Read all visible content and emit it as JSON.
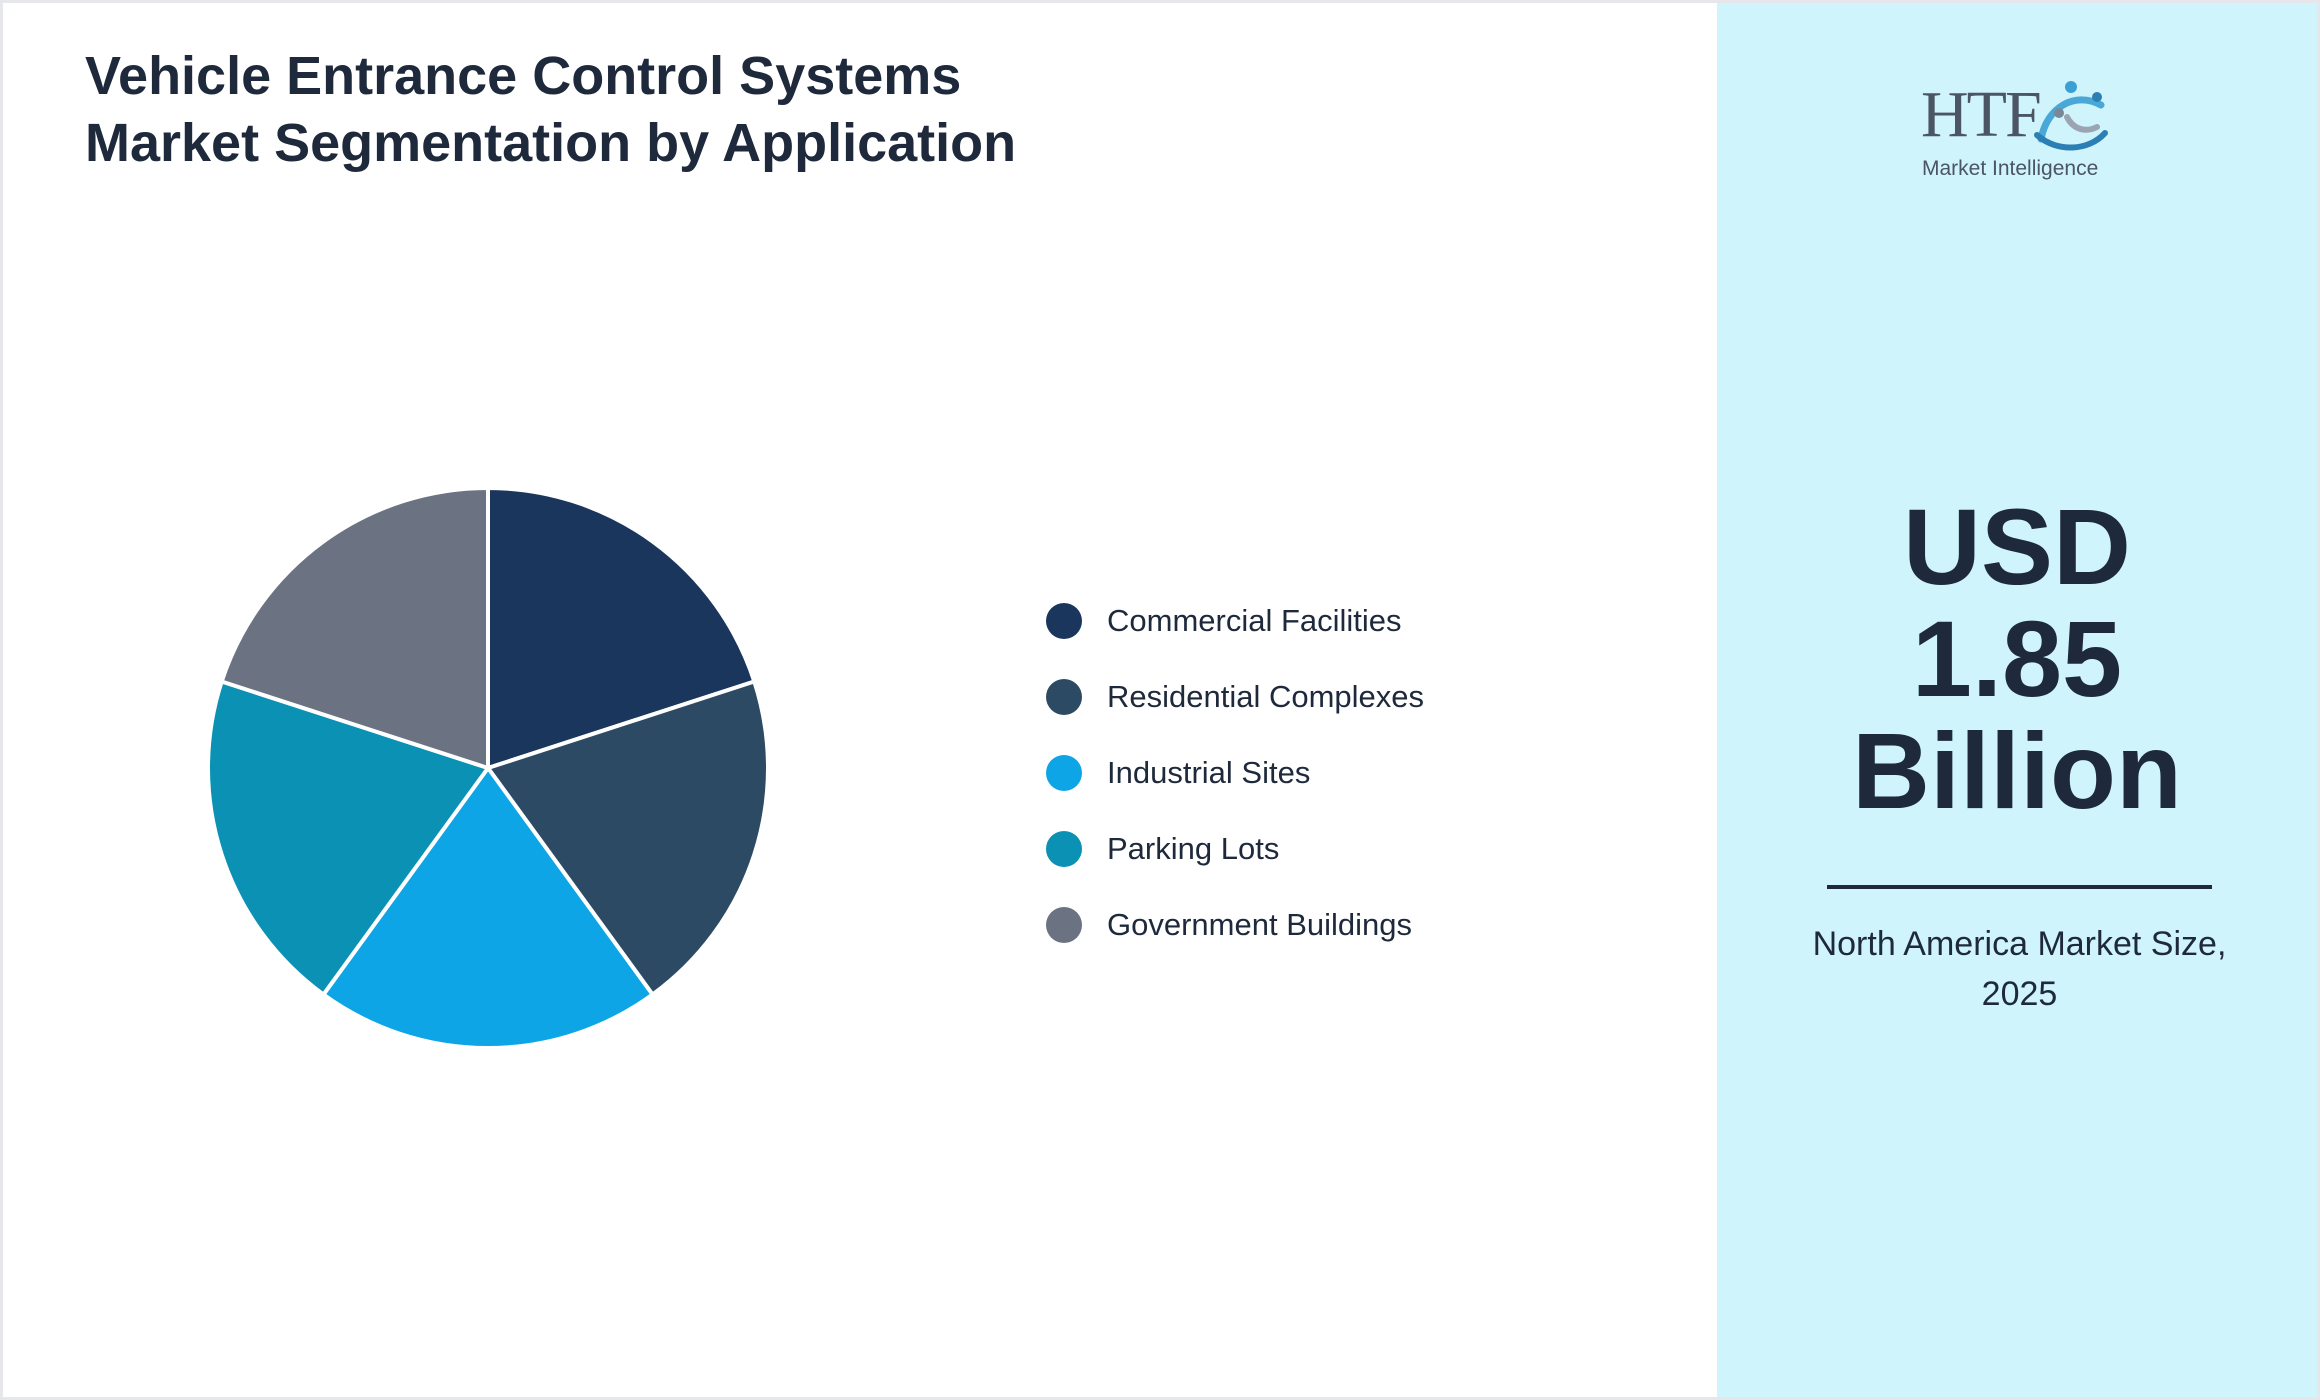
{
  "chart_data": {
    "type": "pie",
    "title": "Vehicle Entrance Control Systems Market Segmentation by Application",
    "categories": [
      "Commercial Facilities",
      "Residential Complexes",
      "Industrial Sites",
      "Parking Lots",
      "Government Buildings"
    ],
    "values": [
      20,
      20,
      20,
      20,
      20
    ],
    "colors": [
      "#1b365d",
      "#2d4a65",
      "#0ea5e6",
      "#0a91b4",
      "#6b7281"
    ],
    "legend_position": "right"
  },
  "side_panel": {
    "logo": {
      "text": "HTF",
      "subtitle": "Market Intelligence",
      "icon": "htf-globe-people-icon"
    },
    "kpi": {
      "line1": "USD",
      "line2": "1.85",
      "line3": "Billion"
    },
    "caption": "North America Market Size, 2025",
    "background": "#cff4fc"
  }
}
